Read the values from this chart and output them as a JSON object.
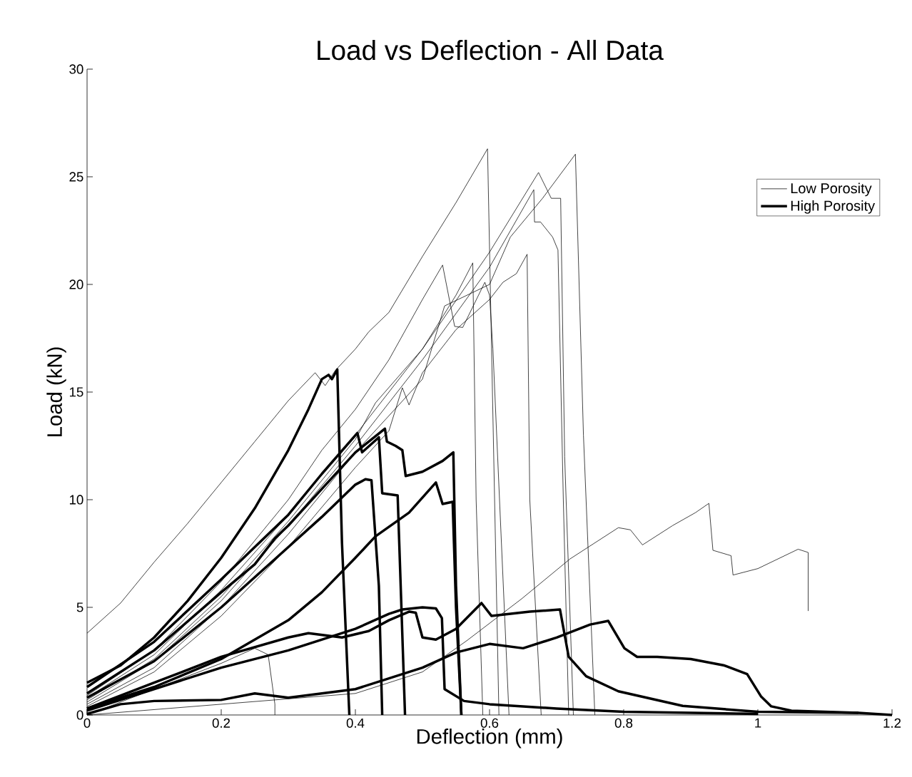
{
  "chart_data": {
    "type": "line",
    "title": "Load vs Deflection - All Data",
    "xlabel": "Deflection (mm)",
    "ylabel": "Load (kN)",
    "xlim": [
      0,
      1.2
    ],
    "ylim": [
      0,
      30
    ],
    "xticks": [
      0,
      0.2,
      0.4,
      0.6,
      0.8,
      1,
      1.2
    ],
    "yticks": [
      0,
      5,
      10,
      15,
      20,
      25,
      30
    ],
    "legend": "top right",
    "series": [
      {
        "name": "Low Porosity",
        "color": "#000000",
        "x": [
          0,
          0.05,
          0.1,
          0.15,
          0.2,
          0.25,
          0.3,
          0.34,
          0.355,
          0.37,
          0.4,
          0.42,
          0.45,
          0.5,
          0.55,
          0.597,
          0.614
        ],
        "values": [
          3.8,
          5.2,
          7.1,
          8.9,
          10.8,
          12.7,
          14.6,
          15.9,
          15.3,
          16.0,
          17.0,
          17.8,
          18.7,
          21.3,
          23.8,
          26.3,
          0
        ]
      },
      {
        "color": "#000000",
        "x": [
          0,
          0.1,
          0.2,
          0.3,
          0.4,
          0.5,
          0.533,
          0.6,
          0.631,
          0.679,
          0.728,
          0.74,
          0.757
        ],
        "values": [
          0.5,
          2.2,
          5.0,
          8.4,
          12.2,
          15.6,
          19.0,
          20.0,
          22.2,
          24.0,
          26.05,
          13,
          0
        ]
      },
      {
        "color": "#000000",
        "x": [
          0,
          0.1,
          0.2,
          0.3,
          0.4,
          0.5,
          0.6,
          0.673,
          0.692,
          0.706,
          0.712,
          0.725
        ],
        "values": [
          0.8,
          2.8,
          5.8,
          9.3,
          13.0,
          17.0,
          21.5,
          25.2,
          24.0,
          24.0,
          12,
          0
        ]
      },
      {
        "color": "#000000",
        "x": [
          0,
          0.1,
          0.2,
          0.3,
          0.4,
          0.5,
          0.6,
          0.666,
          0.667,
          0.676,
          0.694,
          0.702,
          0.71,
          0.718
        ],
        "values": [
          0.6,
          2.5,
          5.3,
          8.8,
          12.5,
          16.5,
          20.8,
          24.4,
          22.9,
          22.9,
          22.2,
          21.6,
          10,
          0
        ]
      },
      {
        "color": "#000000",
        "x": [
          0,
          0.1,
          0.2,
          0.3,
          0.4,
          0.45,
          0.47,
          0.48,
          0.5,
          0.55,
          0.6,
          0.62,
          0.64,
          0.656,
          0.66,
          0.677
        ],
        "values": [
          0.4,
          2.0,
          4.6,
          7.8,
          11.5,
          13.2,
          15.2,
          14.4,
          15.9,
          17.9,
          19.3,
          20.1,
          20.5,
          21.4,
          10,
          0
        ]
      },
      {
        "color": "#000000",
        "x": [
          0,
          0.1,
          0.2,
          0.3,
          0.4,
          0.43,
          0.5,
          0.55,
          0.575,
          0.58,
          0.59
        ],
        "values": [
          0.7,
          2.6,
          5.5,
          9.0,
          12.8,
          14.5,
          17.0,
          19.5,
          21.0,
          10,
          0
        ]
      },
      {
        "color": "#000000",
        "x": [
          0,
          0.1,
          0.2,
          0.3,
          0.35,
          0.4,
          0.45,
          0.5,
          0.53,
          0.548,
          0.56,
          0.593,
          0.6,
          0.605,
          0.629
        ],
        "values": [
          0.9,
          3.0,
          6.2,
          10.0,
          12.3,
          14.2,
          16.5,
          19.3,
          20.9,
          18.05,
          18.0,
          20.1,
          19.5,
          17,
          0
        ]
      },
      {
        "color": "#000000",
        "x": [
          0,
          0.1,
          0.2,
          0.25,
          0.27,
          0.28,
          0.28
        ],
        "values": [
          0,
          1.2,
          2.4,
          3.1,
          2.8,
          0.5,
          0
        ]
      },
      {
        "color": "#000000",
        "x": [
          0,
          0.2,
          0.4,
          0.5,
          0.566,
          0.648,
          0.72,
          0.792,
          0.81,
          0.828,
          0.873,
          0.907,
          0.927,
          0.933,
          0.96,
          0.963,
          1.0,
          1.06,
          1.075,
          1.075
        ],
        "values": [
          0,
          0.5,
          1.0,
          2.0,
          3.45,
          5.4,
          7.25,
          8.7,
          8.6,
          7.9,
          8.8,
          9.4,
          9.83,
          7.65,
          7.4,
          6.5,
          6.8,
          7.7,
          7.55,
          4.83
        ]
      },
      {
        "name": "High Porosity",
        "color": "#000000",
        "x": [
          0,
          0.05,
          0.1,
          0.15,
          0.2,
          0.25,
          0.3,
          0.33,
          0.35,
          0.36,
          0.365,
          0.373,
          0.38,
          0.391
        ],
        "values": [
          1.5,
          2.3,
          3.6,
          5.3,
          7.3,
          9.6,
          12.3,
          14.2,
          15.6,
          15.8,
          15.6,
          16.05,
          8,
          0
        ]
      },
      {
        "color": "#000000",
        "x": [
          0,
          0.1,
          0.2,
          0.3,
          0.35,
          0.403,
          0.41,
          0.435,
          0.44,
          0.463,
          0.474
        ],
        "values": [
          1.3,
          3.4,
          6.3,
          9.3,
          11.2,
          13.1,
          12.2,
          12.9,
          10.3,
          10.2,
          0
        ]
      },
      {
        "color": "#000000",
        "x": [
          0,
          0.1,
          0.2,
          0.25,
          0.28,
          0.3,
          0.35,
          0.4,
          0.444,
          0.447,
          0.46,
          0.47,
          0.475,
          0.5,
          0.53,
          0.546,
          0.55,
          0.558
        ],
        "values": [
          1.0,
          3.0,
          5.7,
          7.0,
          8.2,
          8.8,
          10.5,
          12.2,
          13.3,
          12.7,
          12.5,
          12.3,
          11.1,
          11.3,
          11.8,
          12.2,
          6,
          0
        ]
      },
      {
        "color": "#000000",
        "x": [
          0,
          0.1,
          0.2,
          0.3,
          0.35,
          0.4,
          0.415,
          0.424,
          0.435,
          0.44
        ],
        "values": [
          0.8,
          2.5,
          5.0,
          7.8,
          9.2,
          10.7,
          10.95,
          10.9,
          6,
          0
        ]
      },
      {
        "color": "#000000",
        "x": [
          0,
          0.1,
          0.2,
          0.3,
          0.35,
          0.4,
          0.43,
          0.48,
          0.52,
          0.53,
          0.545,
          0.55,
          0.558
        ],
        "values": [
          0.3,
          1.3,
          2.6,
          4.4,
          5.7,
          7.3,
          8.3,
          9.4,
          10.8,
          9.8,
          9.9,
          5,
          0
        ]
      },
      {
        "color": "#000000",
        "x": [
          0,
          0.2,
          0.3,
          0.4,
          0.45,
          0.47,
          0.5,
          0.52,
          0.529,
          0.533,
          0.562,
          0.6,
          0.7,
          0.8,
          1.0
        ],
        "values": [
          0.2,
          2.2,
          3.0,
          4.0,
          4.7,
          4.9,
          5.0,
          4.95,
          4.5,
          1.2,
          0.65,
          0.5,
          0.3,
          0.15,
          0.05
        ]
      },
      {
        "color": "#000000",
        "x": [
          0,
          0.1,
          0.2,
          0.3,
          0.33,
          0.38,
          0.42,
          0.45,
          0.48,
          0.49,
          0.5,
          0.52,
          0.55,
          0.588,
          0.603,
          0.66,
          0.705,
          0.718,
          0.744,
          0.792,
          0.888,
          1.0,
          1.15
        ],
        "values": [
          0.3,
          1.5,
          2.7,
          3.6,
          3.8,
          3.6,
          3.9,
          4.4,
          4.8,
          4.75,
          3.6,
          3.5,
          4.0,
          5.2,
          4.6,
          4.8,
          4.9,
          2.7,
          1.8,
          1.1,
          0.42,
          0.15,
          0.1
        ]
      },
      {
        "color": "#000000",
        "x": [
          0,
          0.05,
          0.1,
          0.2,
          0.25,
          0.3,
          0.35,
          0.4,
          0.5,
          0.55,
          0.6,
          0.65,
          0.7,
          0.75,
          0.777,
          0.801,
          0.82,
          0.85,
          0.9,
          0.95,
          0.984,
          1.005,
          1.02,
          1.05,
          1.15,
          1.2
        ],
        "values": [
          0.05,
          0.5,
          0.65,
          0.7,
          1.0,
          0.8,
          1.0,
          1.2,
          2.2,
          2.9,
          3.3,
          3.1,
          3.6,
          4.2,
          4.37,
          3.1,
          2.7,
          2.7,
          2.6,
          2.3,
          1.9,
          0.85,
          0.4,
          0.2,
          0.1,
          0
        ]
      }
    ]
  }
}
